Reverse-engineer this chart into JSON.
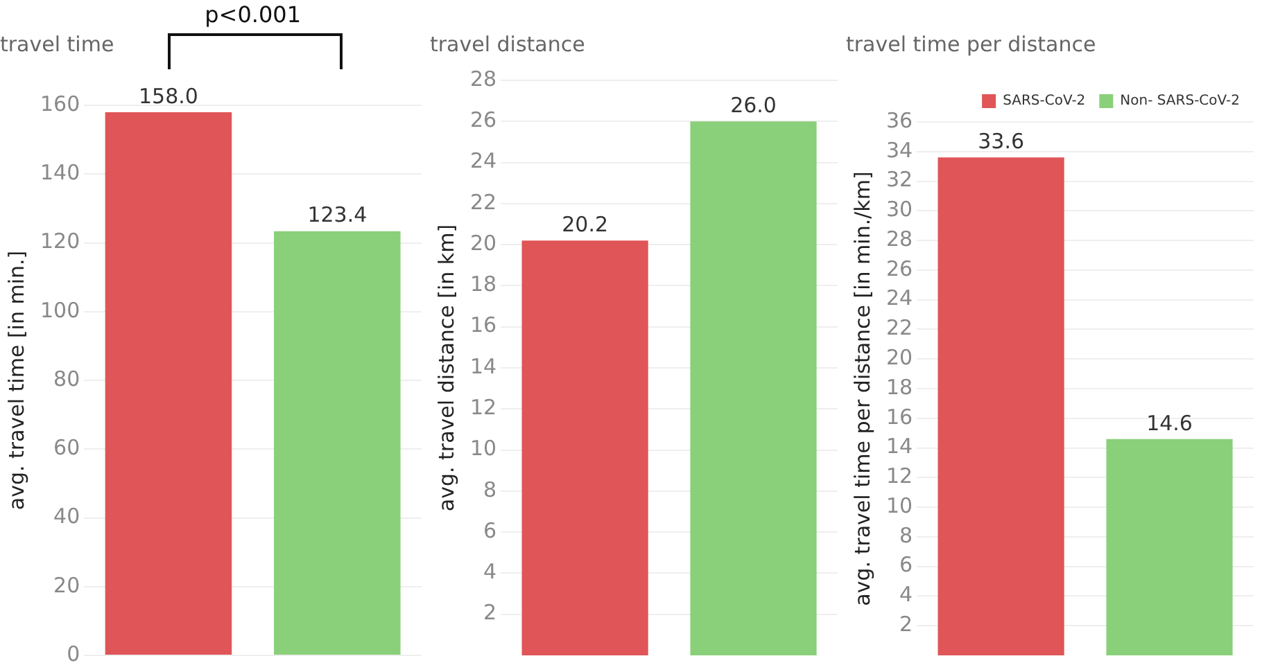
{
  "chart_data": [
    {
      "type": "bar",
      "title": "travel time",
      "ylabel": "avg. travel time [in min.]",
      "categories": [
        null,
        null
      ],
      "values": [
        158.0,
        123.4
      ],
      "value_labels": [
        "158.0",
        "123.4"
      ],
      "colors": [
        "#e05557",
        "#8ad07a"
      ],
      "ylim": [
        0,
        160
      ],
      "yticks": [
        0,
        20,
        40,
        60,
        80,
        100,
        120,
        140,
        160
      ],
      "grid": "y",
      "tick_labels": "y",
      "legend": false,
      "annotations": [
        "p<0.001"
      ]
    },
    {
      "type": "bar",
      "title": "travel distance",
      "ylabel": "avg. travel distance [in km]",
      "categories": [
        null,
        null
      ],
      "values": [
        20.2,
        26.0
      ],
      "value_labels": [
        "20.2",
        "26.0"
      ],
      "colors": [
        "#e05557",
        "#8ad07a"
      ],
      "ylim": [
        0,
        28
      ],
      "yticks": [
        2,
        4,
        6,
        8,
        10,
        12,
        14,
        16,
        18,
        20,
        22,
        24,
        26,
        28
      ],
      "grid": "y",
      "tick_labels": "y",
      "legend": false
    },
    {
      "type": "bar",
      "title": "travel time per distance",
      "ylabel": "avg. travel time per distance [in min./km]",
      "categories": [
        null,
        null
      ],
      "series": [
        {
          "name": "SARS-CoV-2",
          "color": "#e05557",
          "values": [
            33.6,
            null
          ],
          "value_labels": [
            "33.6",
            null
          ]
        },
        {
          "name": "Non- SARS-CoV-2",
          "color": "#8ad07a",
          "values": [
            null,
            14.6
          ],
          "value_labels": [
            null,
            "14.6"
          ]
        }
      ],
      "ylim": [
        0,
        36
      ],
      "yticks": [
        2,
        4,
        6,
        8,
        10,
        12,
        14,
        16,
        18,
        20,
        22,
        24,
        26,
        28,
        30,
        32,
        34,
        36
      ],
      "grid": "y",
      "tick_labels": "y",
      "legend": "top right"
    }
  ]
}
